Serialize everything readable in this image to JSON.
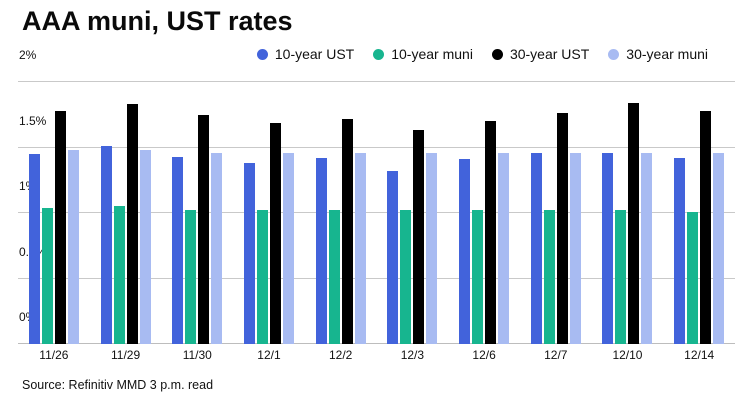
{
  "title": "AAA muni, UST rates",
  "source": "Source: Refinitiv MMD 3 p.m. read",
  "chart_data": {
    "type": "bar",
    "title": "AAA muni, UST rates",
    "xlabel": "",
    "ylabel": "",
    "ylim": [
      0,
      2
    ],
    "yticks": [
      {
        "value": 0,
        "label": "0%"
      },
      {
        "value": 0.5,
        "label": "0.5%"
      },
      {
        "value": 1,
        "label": "1%"
      },
      {
        "value": 1.5,
        "label": "1.5%"
      },
      {
        "value": 2,
        "label": "2%"
      }
    ],
    "grid": true,
    "legend_position": "top",
    "categories": [
      "11/26",
      "11/29",
      "11/30",
      "12/1",
      "12/2",
      "12/3",
      "12/6",
      "12/7",
      "12/10",
      "12/14"
    ],
    "series": [
      {
        "name": "10-year UST",
        "color": "#4263DB",
        "values": [
          1.45,
          1.51,
          1.43,
          1.38,
          1.42,
          1.32,
          1.41,
          1.46,
          1.46,
          1.42
        ]
      },
      {
        "name": "10-year muni",
        "color": "#17B58F",
        "values": [
          1.04,
          1.05,
          1.02,
          1.02,
          1.02,
          1.02,
          1.02,
          1.02,
          1.02,
          1.01
        ]
      },
      {
        "name": "30-year UST",
        "color": "#000000",
        "values": [
          1.78,
          1.83,
          1.75,
          1.69,
          1.72,
          1.63,
          1.7,
          1.76,
          1.84,
          1.78
        ]
      },
      {
        "name": "30-year muni",
        "color": "#A8BBF2",
        "values": [
          1.48,
          1.48,
          1.46,
          1.46,
          1.46,
          1.46,
          1.46,
          1.46,
          1.46,
          1.46
        ]
      }
    ]
  }
}
